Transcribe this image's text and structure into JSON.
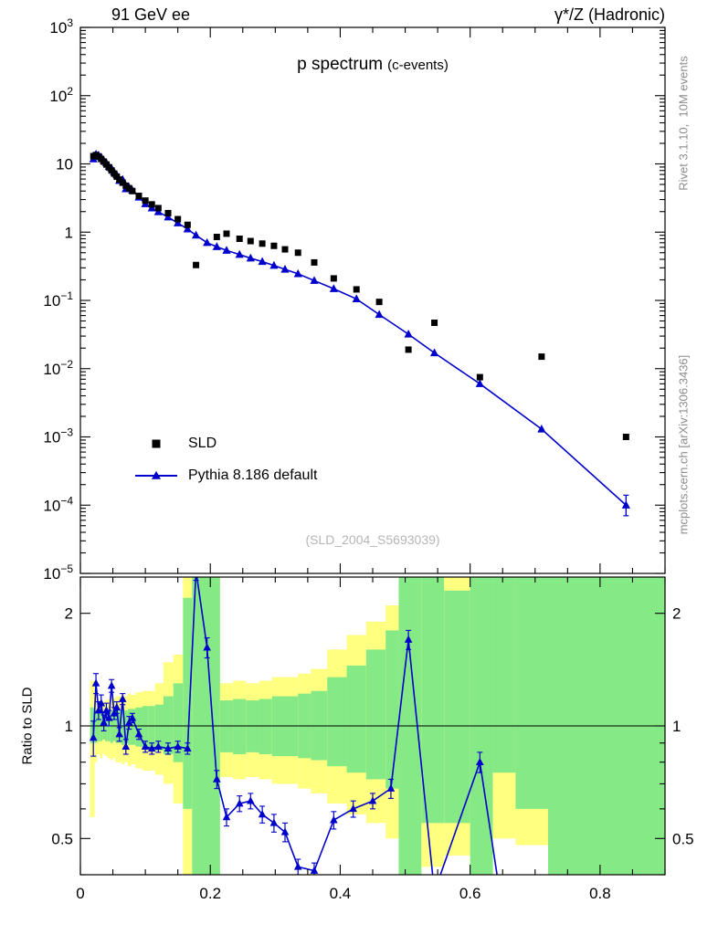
{
  "header": {
    "left": "91 GeV ee",
    "right": "γ*/Z (Hadronic)"
  },
  "title": {
    "main": "p spectrum",
    "sub": "(c-events)"
  },
  "legend": [
    {
      "label": "SLD",
      "marker": "square",
      "color": "#000000"
    },
    {
      "label": "Pythia 8.186 default",
      "marker": "triangle-line",
      "color": "#0000cc"
    }
  ],
  "watermark": "(SLD_2004_S5693039)",
  "side_notes": {
    "top": "Rivet 3.1.10,  10M events",
    "bottom": "mcplots.cern.ch [arXiv:1306.3436]"
  },
  "ratio_axis_label": "Ratio to SLD",
  "colors": {
    "mc_blue": "#0000cc",
    "band_yellow": "#ffff80",
    "band_green": "#85e985",
    "gray_text": "#8c8c8c",
    "watermark_gray": "#b5b5b5"
  },
  "chart_data": [
    {
      "type": "scatter",
      "title": "p spectrum (c-events)",
      "xlabel": "",
      "ylabel": "",
      "xlim": [
        0,
        0.9
      ],
      "yscale": "log",
      "ylim": [
        1e-05,
        1000
      ],
      "ytick_exponents": [
        3,
        2,
        1,
        0,
        -1,
        -2,
        -3,
        -4,
        -5
      ],
      "grid": false,
      "legend_position": "left-lower",
      "series": [
        {
          "name": "SLD",
          "marker": "square",
          "color": "#000000",
          "x": [
            0.02,
            0.024,
            0.028,
            0.032,
            0.036,
            0.04,
            0.044,
            0.048,
            0.052,
            0.056,
            0.06,
            0.065,
            0.07,
            0.075,
            0.08,
            0.09,
            0.1,
            0.11,
            0.12,
            0.135,
            0.15,
            0.165,
            0.178,
            0.21,
            0.225,
            0.245,
            0.262,
            0.28,
            0.298,
            0.315,
            0.335,
            0.36,
            0.39,
            0.425,
            0.46,
            0.505,
            0.545,
            0.615,
            0.71,
            0.84
          ],
          "y": [
            13.0,
            13.5,
            12.8,
            11.8,
            10.8,
            9.8,
            8.9,
            8.0,
            7.2,
            6.5,
            5.9,
            5.3,
            4.8,
            4.4,
            4.0,
            3.4,
            2.9,
            2.55,
            2.25,
            1.9,
            1.55,
            1.28,
            0.33,
            0.85,
            0.95,
            0.8,
            0.74,
            0.68,
            0.63,
            0.56,
            0.5,
            0.36,
            0.21,
            0.145,
            0.095,
            0.019,
            0.047,
            0.0075,
            0.015,
            0.001
          ]
        },
        {
          "name": "Pythia 8.186 default",
          "marker": "triangle",
          "line": true,
          "color": "#0000cc",
          "x": [
            0.02,
            0.024,
            0.028,
            0.032,
            0.036,
            0.04,
            0.044,
            0.048,
            0.052,
            0.056,
            0.06,
            0.065,
            0.07,
            0.075,
            0.08,
            0.09,
            0.1,
            0.11,
            0.12,
            0.135,
            0.15,
            0.165,
            0.178,
            0.195,
            0.21,
            0.225,
            0.245,
            0.262,
            0.28,
            0.298,
            0.315,
            0.335,
            0.36,
            0.39,
            0.425,
            0.46,
            0.505,
            0.545,
            0.615,
            0.71,
            0.84
          ],
          "y": [
            11.8,
            13.8,
            13.4,
            12.6,
            11.2,
            10.4,
            9.2,
            8.6,
            7.6,
            6.9,
            5.7,
            5.9,
            4.3,
            4.5,
            4.1,
            3.25,
            2.6,
            2.25,
            1.98,
            1.66,
            1.36,
            1.11,
            0.9,
            0.7,
            0.61,
            0.54,
            0.47,
            0.415,
            0.37,
            0.325,
            0.285,
            0.245,
            0.195,
            0.148,
            0.105,
            0.062,
            0.032,
            0.017,
            0.006,
            0.0013,
            0.0001
          ],
          "err_bars": [
            [
              0.84,
              7e-05,
              0.00014
            ]
          ]
        }
      ]
    },
    {
      "type": "line",
      "ylabel": "Ratio to SLD",
      "yscale": "log",
      "ylim": [
        0.4,
        2.5
      ],
      "xlim": [
        0,
        0.9
      ],
      "xticks": [
        0,
        0.2,
        0.4,
        0.6,
        0.8
      ],
      "xtick_labels": [
        "0",
        "0.2",
        "0.4",
        "0.6",
        "0.8"
      ],
      "yticks": [
        0.5,
        1,
        2
      ],
      "ytick_labels": [
        "0.5",
        "1",
        "2"
      ],
      "yticks_minor": [
        0.4,
        0.6,
        0.7,
        0.8,
        0.9
      ],
      "reference_line": 1,
      "series": [
        {
          "name": "Pythia 8.186 default / SLD",
          "color": "#0000cc",
          "x": [
            0.02,
            0.024,
            0.028,
            0.032,
            0.036,
            0.04,
            0.044,
            0.048,
            0.052,
            0.056,
            0.06,
            0.065,
            0.07,
            0.075,
            0.08,
            0.09,
            0.1,
            0.11,
            0.12,
            0.135,
            0.15,
            0.165,
            0.178,
            0.195,
            0.21,
            0.225,
            0.245,
            0.262,
            0.28,
            0.298,
            0.315,
            0.335,
            0.36,
            0.39,
            0.42,
            0.45,
            0.478,
            0.505,
            0.545,
            0.615,
            0.655
          ],
          "y": [
            0.93,
            1.3,
            1.1,
            1.15,
            1.02,
            1.1,
            1.05,
            1.28,
            1.08,
            1.12,
            0.95,
            1.18,
            0.88,
            1.02,
            1.05,
            0.95,
            0.88,
            0.87,
            0.88,
            0.87,
            0.88,
            0.87,
            2.6,
            1.62,
            0.72,
            0.57,
            0.62,
            0.63,
            0.58,
            0.55,
            0.52,
            0.42,
            0.41,
            0.56,
            0.6,
            0.63,
            0.68,
            1.7,
            0.36,
            0.8,
            0.28
          ],
          "yerr": [
            0.1,
            0.08,
            0.06,
            0.06,
            0.05,
            0.05,
            0.05,
            0.05,
            0.04,
            0.04,
            0.04,
            0.04,
            0.04,
            0.04,
            0.03,
            0.03,
            0.03,
            0.03,
            0.03,
            0.03,
            0.03,
            0.03,
            0.15,
            0.1,
            0.04,
            0.03,
            0.03,
            0.03,
            0.03,
            0.03,
            0.03,
            0.02,
            0.02,
            0.03,
            0.03,
            0.03,
            0.04,
            0.1,
            0.03,
            0.05,
            0.03
          ]
        }
      ],
      "bands": {
        "yellow_color": "#ffff80",
        "green_color": "#85e985",
        "bins": [
          [
            0.015,
            0.022,
            0.57,
            1.32,
            0.9,
            1.12
          ],
          [
            0.022,
            0.026,
            0.8,
            1.2,
            0.9,
            1.1
          ],
          [
            0.026,
            0.03,
            0.84,
            1.16,
            0.91,
            1.09
          ],
          [
            0.03,
            0.034,
            0.82,
            1.18,
            0.91,
            1.09
          ],
          [
            0.034,
            0.038,
            0.84,
            1.16,
            0.92,
            1.08
          ],
          [
            0.038,
            0.042,
            0.83,
            1.17,
            0.91,
            1.09
          ],
          [
            0.042,
            0.046,
            0.82,
            1.18,
            0.91,
            1.09
          ],
          [
            0.046,
            0.05,
            0.81,
            1.19,
            0.9,
            1.1
          ],
          [
            0.05,
            0.054,
            0.82,
            1.18,
            0.91,
            1.09
          ],
          [
            0.054,
            0.058,
            0.8,
            1.2,
            0.9,
            1.1
          ],
          [
            0.058,
            0.063,
            0.8,
            1.2,
            0.9,
            1.1
          ],
          [
            0.063,
            0.068,
            0.79,
            1.21,
            0.89,
            1.11
          ],
          [
            0.068,
            0.073,
            0.8,
            1.2,
            0.9,
            1.1
          ],
          [
            0.073,
            0.078,
            0.78,
            1.22,
            0.89,
            1.11
          ],
          [
            0.078,
            0.085,
            0.79,
            1.21,
            0.89,
            1.11
          ],
          [
            0.085,
            0.095,
            0.77,
            1.23,
            0.88,
            1.12
          ],
          [
            0.095,
            0.105,
            0.76,
            1.24,
            0.87,
            1.13
          ],
          [
            0.105,
            0.115,
            0.76,
            1.24,
            0.87,
            1.13
          ],
          [
            0.115,
            0.128,
            0.74,
            1.3,
            0.86,
            1.14
          ],
          [
            0.128,
            0.143,
            0.7,
            1.48,
            0.84,
            1.2
          ],
          [
            0.143,
            0.158,
            0.62,
            1.55,
            0.8,
            1.3
          ],
          [
            0.158,
            0.172,
            0.4,
            2.5,
            0.6,
            2.2
          ],
          [
            0.172,
            0.215,
            0.4,
            2.5,
            0.4,
            2.5
          ],
          [
            0.215,
            0.235,
            0.73,
            1.3,
            0.85,
            1.17
          ],
          [
            0.235,
            0.255,
            0.72,
            1.32,
            0.84,
            1.18
          ],
          [
            0.255,
            0.275,
            0.73,
            1.3,
            0.85,
            1.17
          ],
          [
            0.275,
            0.295,
            0.72,
            1.32,
            0.84,
            1.18
          ],
          [
            0.295,
            0.315,
            0.7,
            1.35,
            0.83,
            1.2
          ],
          [
            0.315,
            0.335,
            0.7,
            1.35,
            0.83,
            1.2
          ],
          [
            0.335,
            0.355,
            0.68,
            1.38,
            0.82,
            1.22
          ],
          [
            0.355,
            0.38,
            0.66,
            1.42,
            0.81,
            1.24
          ],
          [
            0.38,
            0.41,
            0.62,
            1.6,
            0.78,
            1.35
          ],
          [
            0.41,
            0.44,
            0.58,
            1.75,
            0.75,
            1.45
          ],
          [
            0.44,
            0.47,
            0.55,
            1.9,
            0.72,
            1.6
          ],
          [
            0.47,
            0.49,
            0.5,
            2.1,
            0.68,
            1.8
          ],
          [
            0.49,
            0.525,
            0.4,
            2.5,
            0.4,
            2.5
          ],
          [
            0.525,
            0.56,
            0.42,
            2.5,
            0.55,
            2.5
          ],
          [
            0.56,
            0.6,
            0.45,
            2.5,
            0.55,
            2.3
          ],
          [
            0.6,
            0.635,
            0.4,
            2.5,
            0.4,
            2.5
          ],
          [
            0.635,
            0.67,
            0.5,
            2.5,
            0.75,
            2.5
          ],
          [
            0.67,
            0.72,
            0.48,
            2.5,
            0.6,
            2.5
          ],
          [
            0.72,
            0.91,
            0.4,
            2.5,
            0.4,
            2.5
          ]
        ]
      }
    }
  ]
}
